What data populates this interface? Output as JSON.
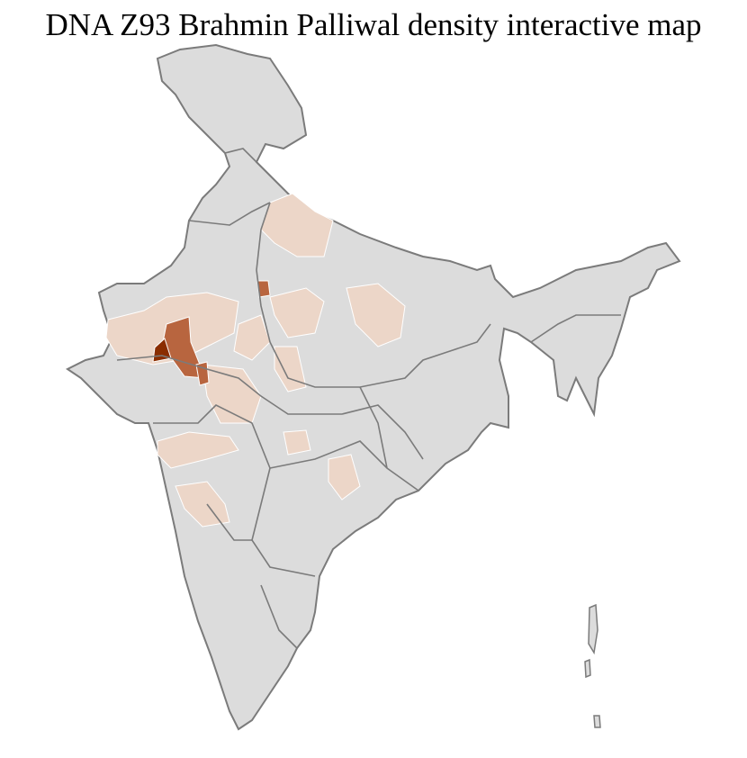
{
  "title": "DNA Z93 Brahmin Palliwal density interactive map",
  "colors": {
    "no_data": "#dcdcdc",
    "low": "#ecd6c8",
    "medium": "#b8653f",
    "high": "#8a2d00",
    "district_border": "#ffffff",
    "state_border": "#7b7b7b"
  }
}
